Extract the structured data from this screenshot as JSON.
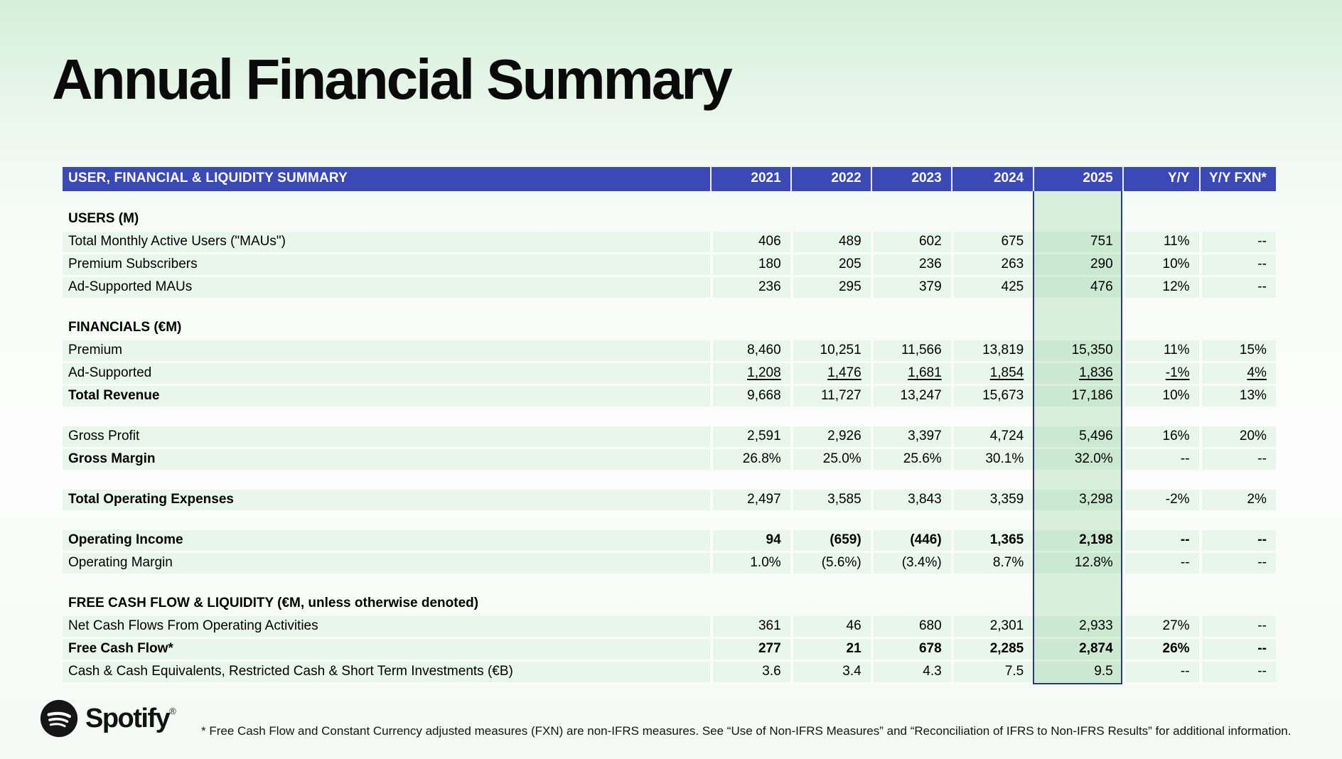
{
  "slide": {
    "title": "Annual Financial Summary"
  },
  "table": {
    "title": "USER, FINANCIAL & LIQUIDITY SUMMARY",
    "columns": [
      "2021",
      "2022",
      "2023",
      "2024",
      "2025",
      "Y/Y",
      "Y/Y FXN*"
    ],
    "highlight_column": "2025",
    "rows": [
      {
        "type": "spacer"
      },
      {
        "type": "section",
        "label": "USERS (M)"
      },
      {
        "type": "data",
        "label": "Total Monthly Active Users (\"MAUs\")",
        "values": [
          "406",
          "489",
          "602",
          "675",
          "751",
          "11%",
          "--"
        ]
      },
      {
        "type": "data",
        "label": "Premium Subscribers",
        "values": [
          "180",
          "205",
          "236",
          "263",
          "290",
          "10%",
          "--"
        ]
      },
      {
        "type": "data",
        "label": "Ad-Supported MAUs",
        "values": [
          "236",
          "295",
          "379",
          "425",
          "476",
          "12%",
          "--"
        ]
      },
      {
        "type": "spacer"
      },
      {
        "type": "section",
        "label": "FINANCIALS (€M)"
      },
      {
        "type": "data",
        "label": "Premium",
        "values": [
          "8,460",
          "10,251",
          "11,566",
          "13,819",
          "15,350",
          "11%",
          "15%"
        ]
      },
      {
        "type": "data",
        "label": "Ad-Supported",
        "underline_values": true,
        "values": [
          "1,208",
          "1,476",
          "1,681",
          "1,854",
          "1,836",
          "-1%",
          "4%"
        ]
      },
      {
        "type": "data",
        "label": "Total Revenue",
        "bold_label": true,
        "values": [
          "9,668",
          "11,727",
          "13,247",
          "15,673",
          "17,186",
          "10%",
          "13%"
        ]
      },
      {
        "type": "spacer"
      },
      {
        "type": "data",
        "label": "Gross Profit",
        "values": [
          "2,591",
          "2,926",
          "3,397",
          "4,724",
          "5,496",
          "16%",
          "20%"
        ]
      },
      {
        "type": "data",
        "label": "Gross Margin",
        "bold_label": true,
        "values": [
          "26.8%",
          "25.0%",
          "25.6%",
          "30.1%",
          "32.0%",
          "--",
          "--"
        ]
      },
      {
        "type": "spacer"
      },
      {
        "type": "data",
        "label": "Total Operating Expenses",
        "bold_label": true,
        "values": [
          "2,497",
          "3,585",
          "3,843",
          "3,359",
          "3,298",
          "-2%",
          "2%"
        ]
      },
      {
        "type": "spacer"
      },
      {
        "type": "data",
        "label": "Operating Income",
        "bold_label": true,
        "bold_values": true,
        "values": [
          "94",
          "(659)",
          "(446)",
          "1,365",
          "2,198",
          "--",
          "--"
        ]
      },
      {
        "type": "data",
        "label": "Operating Margin",
        "values": [
          "1.0%",
          "(5.6%)",
          "(3.4%)",
          "8.7%",
          "12.8%",
          "--",
          "--"
        ]
      },
      {
        "type": "spacer"
      },
      {
        "type": "section",
        "label": "FREE CASH FLOW & LIQUIDITY (€M, unless otherwise denoted)"
      },
      {
        "type": "data",
        "label": "Net Cash Flows From Operating Activities",
        "values": [
          "361",
          "46",
          "680",
          "2,301",
          "2,933",
          "27%",
          "--"
        ]
      },
      {
        "type": "data",
        "label": "Free Cash Flow*",
        "bold_label": true,
        "bold_values": true,
        "values": [
          "277",
          "21",
          "678",
          "2,285",
          "2,874",
          "26%",
          "--"
        ]
      },
      {
        "type": "data",
        "label": "Cash & Cash Equivalents, Restricted Cash & Short Term Investments (€B)",
        "values": [
          "3.6",
          "3.4",
          "4.3",
          "7.5",
          "9.5",
          "--",
          "--"
        ]
      }
    ]
  },
  "footer": {
    "brand": "Spotify",
    "trademark": "®",
    "footnote": "* Free Cash Flow and Constant Currency adjusted measures (FXN) are non-IFRS measures. See “Use of Non-IFRS Measures” and “Reconciliation of IFRS to Non-IFRS Results” for additional information."
  },
  "colors": {
    "header_bg": "#3B49B7",
    "row_bg": "#E9F6EC",
    "row_gap": "#FAFCFA",
    "highlight_bg": "#CBE8D0",
    "highlight_spacer_bg": "#D9EFDC",
    "highlight_border": "#2A3B76"
  }
}
